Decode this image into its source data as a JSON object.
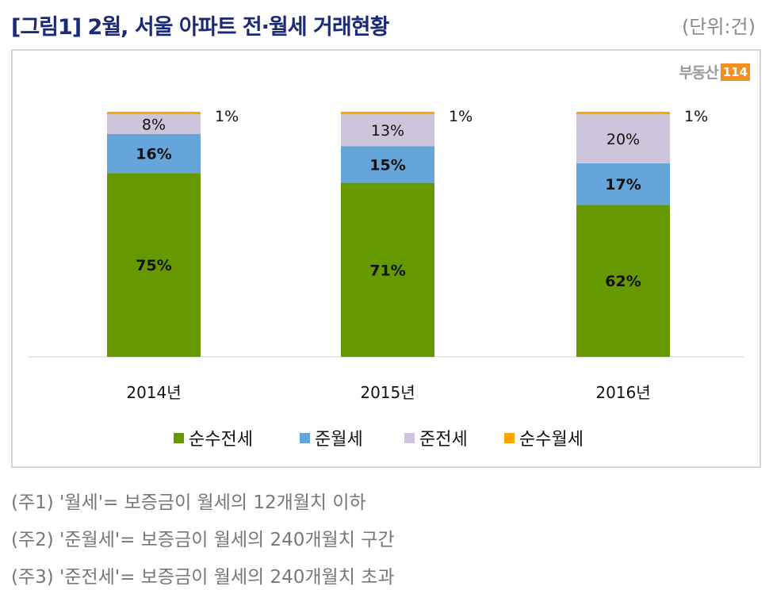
{
  "header": {
    "title": "[그림1] 2월, 서울 아파트 전·월세 거래현황",
    "unit": "(단위:건)"
  },
  "logo": {
    "text": "부동산",
    "number": "114"
  },
  "chart_data": {
    "type": "bar",
    "stacked": true,
    "categories": [
      "2014년",
      "2015년",
      "2016년"
    ],
    "series": [
      {
        "name": "순수전세",
        "color": "#669900",
        "values": [
          75,
          71,
          62
        ],
        "labels": [
          "75%",
          "71%",
          "62%"
        ]
      },
      {
        "name": "준월세",
        "color": "#65a5da",
        "values": [
          16,
          15,
          17
        ],
        "labels": [
          "16%",
          "15%",
          "17%"
        ]
      },
      {
        "name": "준전세",
        "color": "#cdc5dc",
        "values": [
          8,
          13,
          20
        ],
        "labels": [
          "8%",
          "13%",
          "20%"
        ]
      },
      {
        "name": "순수월세",
        "color": "#ffa500",
        "values": [
          1,
          1,
          1
        ],
        "labels": [
          "1%",
          "1%",
          "1%"
        ]
      }
    ],
    "ylim": [
      0,
      100
    ],
    "grid": false,
    "legend": "bottom"
  },
  "notes": [
    "(주1) '월세'= 보증금이 월세의 12개월치 이하",
    "(주2) '준월세'= 보증금이 월세의 240개월치 구간",
    "(주3) '준전세'= 보증금이 월세의 240개월치 초과"
  ]
}
